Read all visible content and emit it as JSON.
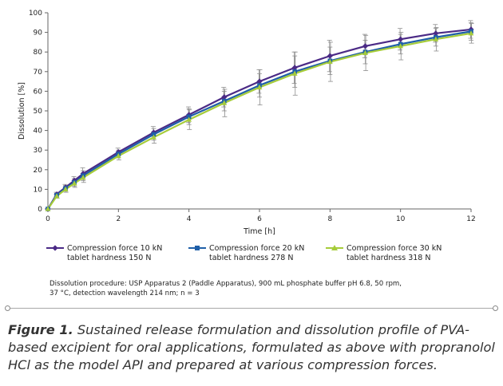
{
  "chart_data": {
    "type": "line",
    "xlabel": "Time [h]",
    "ylabel": "Dissolution [%]",
    "xlim": [
      0,
      12
    ],
    "ylim": [
      0,
      100
    ],
    "x_ticks": [
      0,
      2,
      4,
      6,
      8,
      10,
      12
    ],
    "y_ticks": [
      0,
      10,
      20,
      30,
      40,
      50,
      60,
      70,
      80,
      90,
      100
    ],
    "grid": false,
    "legend_position": "bottom",
    "x": [
      0,
      0.25,
      0.5,
      0.75,
      1,
      2,
      3,
      4,
      5,
      6,
      7,
      8,
      9,
      10,
      11,
      12
    ],
    "series": [
      {
        "name": "Compression force 10 kN\ntablet hardness 150 N",
        "color": "#4b2a86",
        "marker": "diamond",
        "values": [
          0,
          7.5,
          11,
          14.5,
          18,
          29,
          39,
          48,
          57,
          65,
          72,
          78,
          83,
          86.5,
          89.5,
          91.5
        ],
        "error": [
          0,
          1,
          1.5,
          2,
          3,
          2,
          3,
          4,
          5,
          6,
          8,
          8,
          6,
          5.5,
          4.5,
          4.5
        ]
      },
      {
        "name": "Compression force 20 kN\ntablet hardness 278 N",
        "color": "#1f5fa8",
        "marker": "square",
        "values": [
          0,
          7,
          10.5,
          13.5,
          17,
          28,
          38,
          47,
          55,
          63,
          70,
          75.5,
          80,
          84,
          87.5,
          90.5
        ],
        "error": [
          0,
          1,
          1.5,
          2,
          2.5,
          2,
          3,
          4,
          5,
          6,
          8,
          7,
          6,
          5,
          4.5,
          4.5
        ]
      },
      {
        "name": "Compression force 30 kN\ntablet hardness 318 N",
        "color": "#a6cc3a",
        "marker": "triangle",
        "values": [
          0,
          6.5,
          10,
          13,
          16,
          27,
          36.5,
          45.5,
          54,
          62,
          69,
          75,
          79.5,
          83,
          86.5,
          89.5
        ],
        "error": [
          0,
          1,
          1.5,
          2,
          2.5,
          2,
          3,
          5,
          7,
          9,
          11,
          10,
          9,
          7,
          6,
          5
        ]
      }
    ]
  },
  "procedure": {
    "line1": "Dissolution procedure: USP Apparatus 2 (Paddle Apparatus), 900 mL phosphate buffer pH 6.8, 50 rpm,",
    "line2": "37 °C, detection wavelength 214 nm; n = 3"
  },
  "caption": {
    "label": "Figure 1.",
    "text": " Sustained release formulation and dissolution profile of PVA-based excipient for oral applications, formulated as above with propranolol HCl as the model API and prepared at various compression forces."
  }
}
